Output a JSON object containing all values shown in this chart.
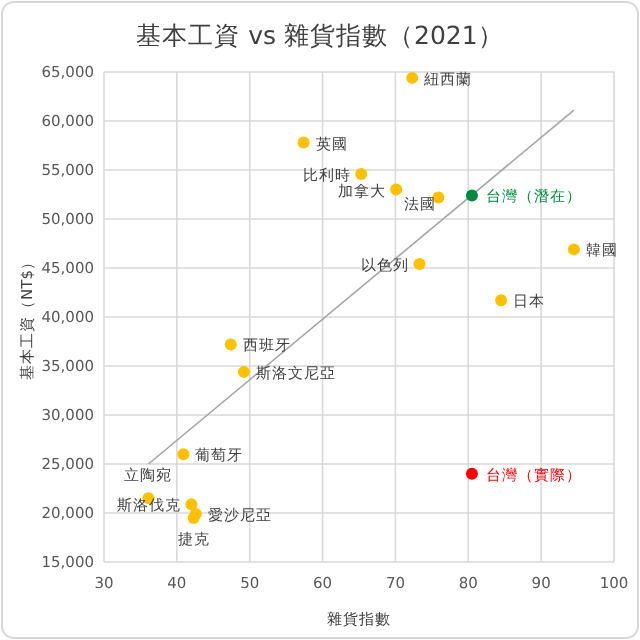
{
  "chart_data": {
    "type": "scatter",
    "title": "基本工資 vs 雜貨指數（2021）",
    "xlabel": "雜貨指數",
    "ylabel": "基本工資（NT$）",
    "xlim": [
      30,
      100
    ],
    "xticks": [
      30,
      40,
      50,
      60,
      70,
      80,
      90,
      100
    ],
    "ylim": [
      15000,
      65000
    ],
    "yticks": [
      {
        "value": 15000,
        "label": "15,000"
      },
      {
        "value": 20000,
        "label": "20,000"
      },
      {
        "value": 25000,
        "label": "25,000"
      },
      {
        "value": 30000,
        "label": "30,000"
      },
      {
        "value": 35000,
        "label": "35,000"
      },
      {
        "value": 40000,
        "label": "40,000"
      },
      {
        "value": 45000,
        "label": "45,000"
      },
      {
        "value": 50000,
        "label": "50,000"
      },
      {
        "value": 55000,
        "label": "55,000"
      },
      {
        "value": 60000,
        "label": "60,000"
      },
      {
        "value": 65000,
        "label": "65,000"
      }
    ],
    "grid": true,
    "marker": "circle",
    "series": [
      {
        "color": "#ffc000",
        "x": [
          72.3,
          57.4,
          65.3,
          70.1,
          75.9,
          94.5,
          73.3,
          84.5,
          47.4,
          49.2,
          40.9,
          36.1,
          42.0,
          42.6,
          42.3
        ],
        "values": [
          64400,
          57800,
          54600,
          53000,
          52200,
          46900,
          45400,
          41700,
          37200,
          34400,
          26000,
          21500,
          20900,
          19900,
          19500
        ]
      },
      {
        "name": "台灣（潛在）",
        "color": "#008a3e",
        "x": [
          80.5
        ],
        "values": [
          52400
        ]
      },
      {
        "name": "台灣（實際）",
        "color": "#ff0000",
        "x": [
          80.5
        ],
        "values": [
          24000
        ]
      },
      {
        "type": "line",
        "marker": "none",
        "color": "#a6a6a6",
        "x": [
          36.1,
          94.5
        ],
        "values": [
          25000,
          61100
        ]
      }
    ],
    "annotations": [
      {
        "text": "紐西蘭",
        "x": 72.3,
        "y": 64400
      },
      {
        "text": "英國",
        "x": 57.4,
        "y": 57800
      },
      {
        "text": "比利時",
        "x": 65.3,
        "y": 54600
      },
      {
        "text": "加拿大",
        "x": 70.1,
        "y": 53000
      },
      {
        "text": "法國",
        "x": 75.9,
        "y": 52200
      },
      {
        "text": "韓國",
        "x": 94.5,
        "y": 46900
      },
      {
        "text": "以色列",
        "x": 73.3,
        "y": 45400
      },
      {
        "text": "日本",
        "x": 84.5,
        "y": 41700
      },
      {
        "text": "西班牙",
        "x": 47.4,
        "y": 37200
      },
      {
        "text": "斯洛文尼亞",
        "x": 49.2,
        "y": 34400
      },
      {
        "text": "葡萄牙",
        "x": 40.9,
        "y": 26000
      },
      {
        "text": "立陶宛",
        "x": 36.1,
        "y": 21500
      },
      {
        "text": "斯洛伐克",
        "x": 42.0,
        "y": 20900
      },
      {
        "text": "愛沙尼亞",
        "x": 42.6,
        "y": 19900
      },
      {
        "text": "捷克",
        "x": 42.3,
        "y": 19500
      }
    ]
  }
}
